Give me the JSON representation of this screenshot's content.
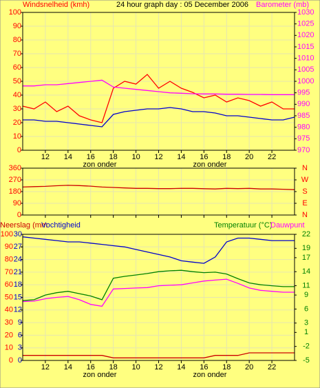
{
  "chart_data": [
    {
      "type": "line",
      "title": "24 hour graph day : 05 December 2006",
      "ylabel": "Windsnelheid (kmh)",
      "y2label": "Barometer (mb)",
      "ycolor": "#ff0000",
      "y2color": "#ff00ff",
      "x": [
        10,
        11,
        12,
        13,
        14,
        15,
        16,
        17,
        18,
        19,
        20,
        21,
        22,
        23,
        24,
        25,
        26,
        27,
        28,
        29,
        30,
        31,
        32,
        33,
        34
      ],
      "xlim": [
        10,
        34
      ],
      "xticks": [
        {
          "value": 12,
          "label": "12"
        },
        {
          "value": 14,
          "label": "14"
        },
        {
          "value": 16,
          "label": "16"
        },
        {
          "value": 18,
          "label": "18"
        },
        {
          "value": 20,
          "label": "10"
        },
        {
          "value": 22,
          "label": "12"
        },
        {
          "value": 24,
          "label": "14"
        },
        {
          "value": 26,
          "label": "16"
        },
        {
          "value": 28,
          "label": "18"
        },
        {
          "value": 30,
          "label": "20"
        },
        {
          "value": 32,
          "label": "22"
        }
      ],
      "ylim": [
        0,
        100
      ],
      "yticks": [
        0,
        10,
        20,
        30,
        40,
        50,
        60,
        70,
        80,
        90,
        100
      ],
      "y2lim": [
        970,
        1030
      ],
      "y2ticks": [
        970,
        975,
        980,
        985,
        990,
        995,
        1000,
        1005,
        1010,
        1015,
        1020,
        1025,
        1030
      ],
      "grid": true,
      "annotations": [
        "zon onder",
        "zon onder"
      ],
      "series": [
        {
          "color": "#ff0000",
          "values": [
            32,
            30,
            35,
            28,
            32,
            25,
            22,
            20,
            45,
            50,
            48,
            55,
            45,
            50,
            45,
            42,
            38,
            40,
            35,
            38,
            36,
            32,
            35,
            30,
            30
          ]
        },
        {
          "color": "#0000cc",
          "values": [
            22,
            22,
            21,
            21,
            20,
            19,
            18,
            17,
            26,
            28,
            29,
            30,
            30,
            31,
            30,
            28,
            28,
            27,
            25,
            25,
            24,
            23,
            22,
            22,
            24
          ]
        },
        {
          "color": "#ff00ff",
          "axis": "y2",
          "values": [
            998,
            998,
            998.5,
            998.5,
            999,
            999.5,
            1000,
            1000.5,
            997.5,
            997,
            996.5,
            996,
            995.5,
            995,
            994.8,
            994.6,
            994.5,
            994.5,
            994.4,
            994.4,
            994.3,
            994.3,
            994.2,
            994.2,
            994.2
          ]
        }
      ]
    },
    {
      "type": "line",
      "ycolor": "#ff0000",
      "y2color": "#ff0000",
      "x": [
        10,
        11,
        12,
        13,
        14,
        15,
        16,
        17,
        18,
        19,
        20,
        21,
        22,
        23,
        24,
        25,
        26,
        27,
        28,
        29,
        30,
        31,
        32,
        33,
        34
      ],
      "xlim": [
        10,
        34
      ],
      "xticks": [
        {
          "value": 12,
          "label": "12"
        },
        {
          "value": 14,
          "label": "14"
        },
        {
          "value": 16,
          "label": "16"
        },
        {
          "value": 18,
          "label": "18"
        },
        {
          "value": 20,
          "label": "10"
        },
        {
          "value": 22,
          "label": "12"
        },
        {
          "value": 24,
          "label": "14"
        },
        {
          "value": 26,
          "label": "16"
        },
        {
          "value": 28,
          "label": "18"
        },
        {
          "value": 30,
          "label": "20"
        },
        {
          "value": 32,
          "label": "22"
        }
      ],
      "ylim": [
        0,
        360
      ],
      "yticks": [
        0,
        90,
        180,
        270,
        360
      ],
      "y2lim": [
        0,
        360
      ],
      "y2ticks": [
        {
          "value": 0,
          "label": "N"
        },
        {
          "value": 90,
          "label": "E"
        },
        {
          "value": 180,
          "label": "S"
        },
        {
          "value": 270,
          "label": "W"
        },
        {
          "value": 360,
          "label": "N"
        }
      ],
      "grid": true,
      "series": [
        {
          "color": "#cc0000",
          "values": [
            215,
            218,
            220,
            225,
            228,
            226,
            222,
            215,
            212,
            208,
            205,
            205,
            203,
            203,
            205,
            205,
            202,
            200,
            205,
            203,
            205,
            200,
            200,
            198,
            195
          ]
        }
      ]
    },
    {
      "type": "line",
      "ycolor": "#ff0000",
      "y2color": "#008000",
      "y3color": "#0000cc",
      "x": [
        10,
        11,
        12,
        13,
        14,
        15,
        16,
        17,
        18,
        19,
        20,
        21,
        22,
        23,
        24,
        25,
        26,
        27,
        28,
        29,
        30,
        31,
        32,
        33,
        34
      ],
      "xlim": [
        10,
        34
      ],
      "xticks": [
        {
          "value": 12,
          "label": "12"
        },
        {
          "value": 14,
          "label": "14"
        },
        {
          "value": 16,
          "label": "16"
        },
        {
          "value": 18,
          "label": "18"
        },
        {
          "value": 20,
          "label": "10"
        },
        {
          "value": 22,
          "label": "12"
        },
        {
          "value": 24,
          "label": "14"
        },
        {
          "value": 26,
          "label": "16"
        },
        {
          "value": 28,
          "label": "18"
        },
        {
          "value": 30,
          "label": "20"
        },
        {
          "value": 32,
          "label": "22"
        }
      ],
      "ylim": [
        0,
        100
      ],
      "yticks": [
        0,
        10,
        20,
        30,
        40,
        50,
        60,
        70,
        80,
        90,
        100
      ],
      "y3lim": [
        0,
        30
      ],
      "y3ticks": [
        0,
        3,
        6,
        9,
        12,
        15,
        18,
        21,
        24,
        27,
        30
      ],
      "y2lim": [
        -5,
        22
      ],
      "y2ticks": [
        -5,
        -2,
        1,
        3,
        6,
        9,
        11,
        14,
        17,
        19,
        22
      ],
      "grid": true,
      "annotations": [
        "zon onder",
        "zon onder"
      ],
      "series": [
        {
          "name": "Neerslag (mm",
          "color": "#cc0000",
          "axis": "y3",
          "values": [
            1.2,
            1.2,
            1.2,
            1.2,
            1.2,
            1.2,
            1.2,
            1.2,
            0.6,
            0.6,
            0.6,
            0.6,
            0.6,
            0.6,
            0.6,
            0.6,
            0.6,
            1.2,
            1.2,
            1.2,
            1.8,
            1.8,
            1.8,
            1.8,
            1.8
          ]
        },
        {
          "name": "Vochtigheid",
          "color": "#0000cc",
          "values": [
            98,
            97,
            96,
            95,
            94,
            94,
            93,
            92,
            91,
            90,
            88,
            86,
            84,
            82,
            79,
            78,
            77,
            82,
            94,
            97,
            97,
            96,
            95,
            95,
            95
          ]
        },
        {
          "name": "Temperatuur (°C)",
          "color": "#008000",
          "axis": "y2",
          "values": [
            7.8,
            8,
            9,
            9.5,
            9.8,
            9.3,
            8.8,
            8,
            12.6,
            13,
            13.3,
            13.6,
            14,
            14.2,
            14.3,
            14,
            13.8,
            13.9,
            13.5,
            12.5,
            11.6,
            11.2,
            11,
            10.8,
            10.8
          ]
        },
        {
          "name": "Dauwpunt",
          "color": "#ff00ff",
          "axis": "y2",
          "values": [
            7.6,
            7.7,
            8.2,
            8.5,
            8.7,
            8,
            7,
            6.6,
            10.3,
            10.4,
            10.5,
            10.6,
            11,
            11.1,
            11.2,
            11.6,
            12,
            12.2,
            12.4,
            11.5,
            10.5,
            10,
            9.8,
            9.6,
            9.6
          ]
        }
      ]
    }
  ]
}
